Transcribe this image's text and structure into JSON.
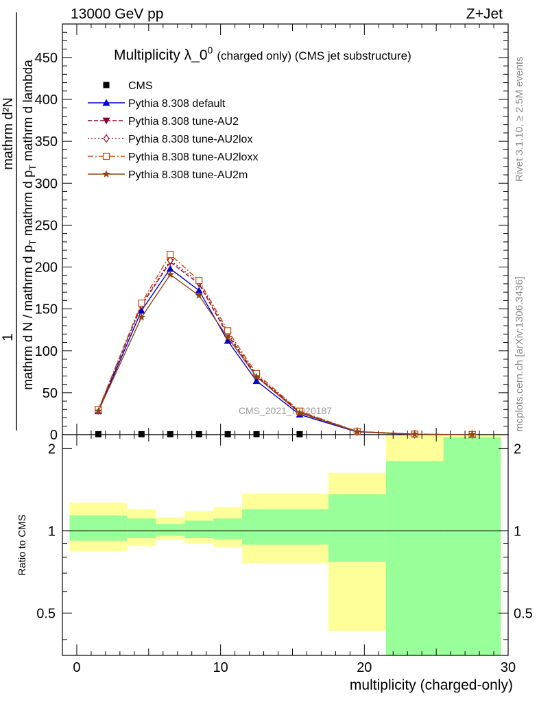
{
  "header": {
    "left": "13000 GeV pp",
    "right": "Z+Jet"
  },
  "side_labels": {
    "rivet": "Rivet 3.1.10, ≥ 2.5M events",
    "mcplots": "mcplots.cern.ch [arXiv:1306.3436]"
  },
  "watermark": "CMS_2021_I1920187",
  "chart_data": [
    {
      "type": "line",
      "panel": "main",
      "title_main": "Multiplicity λ_0",
      "title_sup": "0",
      "title_note": "(charged only) (CMS jet substructure)",
      "ylabel": {
        "num": "mathrm d²N",
        "den": "mathrm d N / mathrm d p",
        "sub": "T",
        "den2": " mathrm d p",
        "sub2": "T",
        "den3": " mathrm d lambda",
        "one": "1"
      },
      "xlim": [
        -1,
        30
      ],
      "ylim": [
        0,
        490
      ],
      "yticks": [
        0,
        50,
        100,
        150,
        200,
        250,
        300,
        350,
        400,
        450
      ],
      "legend_position": "top-left",
      "bins": [
        [
          -1,
          4
        ],
        [
          4,
          5
        ],
        [
          5,
          8
        ],
        [
          8,
          9
        ],
        [
          9,
          11
        ],
        [
          11,
          14
        ],
        [
          14,
          17
        ],
        [
          17,
          22
        ],
        [
          22,
          26
        ],
        [
          26,
          30
        ]
      ],
      "series": [
        {
          "name": "CMS",
          "color": "#000000",
          "marker": "square",
          "x": [
            1.5,
            4.5,
            6.5,
            8.5,
            10.5,
            12.5,
            15.5
          ],
          "y": [
            0.5,
            0.5,
            0.5,
            0.5,
            0.5,
            0.5,
            0.5
          ]
        },
        {
          "name": "Pythia 8.308 default",
          "color": "#0000cc",
          "dash": "",
          "marker": "triangle-up",
          "x": [
            1.5,
            4.5,
            6.5,
            8.5,
            10.5,
            12.5,
            15.5,
            19.5,
            23.5,
            27.5
          ],
          "y": [
            28,
            148,
            198,
            172,
            112,
            64,
            24,
            3.2,
            0.4,
            0.1
          ]
        },
        {
          "name": "Pythia 8.308 tune-AU2",
          "color": "#8b0033",
          "dash": "6,3",
          "marker": "triangle-down",
          "x": [
            1.5,
            4.5,
            6.5,
            8.5,
            10.5,
            12.5,
            15.5,
            19.5,
            23.5,
            27.5
          ],
          "y": [
            29,
            154,
            206,
            180,
            119,
            70,
            27,
            3.6,
            0.5,
            0.1
          ]
        },
        {
          "name": "Pythia 8.308 tune-AU2lox",
          "color": "#a01020",
          "dash": "2,3",
          "marker": "diamond-open",
          "x": [
            1.5,
            4.5,
            6.5,
            8.5,
            10.5,
            12.5,
            15.5,
            19.5,
            23.5,
            27.5
          ],
          "y": [
            29,
            155,
            208,
            182,
            121,
            71,
            27,
            3.7,
            0.5,
            0.1
          ]
        },
        {
          "name": "Pythia 8.308 tune-AU2loxx",
          "color": "#cc4400",
          "dash": "8,3,2,3",
          "marker": "square-open",
          "x": [
            1.5,
            4.5,
            6.5,
            8.5,
            10.5,
            12.5,
            15.5,
            19.5,
            23.5,
            27.5
          ],
          "y": [
            30,
            157,
            215,
            184,
            124,
            73,
            28,
            3.9,
            0.6,
            0.1
          ]
        },
        {
          "name": "Pythia 8.308 tune-AU2m",
          "color": "#8b4513",
          "dash": "",
          "marker": "star",
          "x": [
            1.5,
            4.5,
            6.5,
            8.5,
            10.5,
            12.5,
            15.5,
            19.5,
            23.5,
            27.5
          ],
          "y": [
            28,
            140,
            191,
            166,
            116,
            69,
            26,
            3.5,
            0.5,
            0.1
          ]
        }
      ]
    },
    {
      "type": "area",
      "panel": "ratio",
      "ylabel": "Ratio to CMS",
      "xlabel": "multiplicity (charged-only)",
      "xlim": [
        -1,
        30
      ],
      "ylim": [
        0.35,
        2.25
      ],
      "yticks": [
        0.5,
        1,
        2
      ],
      "ytick_labels": [
        "0.5",
        "1",
        "2"
      ],
      "xticks": [
        0,
        10,
        20,
        30
      ],
      "xtick_labels": [
        "0",
        "10",
        "20",
        "30"
      ],
      "reference_line": 1,
      "bands": [
        {
          "x0": -0.5,
          "x1": 3.5,
          "stat_lo": 0.92,
          "stat_hi": 1.14,
          "tot_lo": 0.84,
          "tot_hi": 1.27
        },
        {
          "x0": 3.5,
          "x1": 5.5,
          "stat_lo": 0.94,
          "stat_hi": 1.11,
          "tot_lo": 0.88,
          "tot_hi": 1.2
        },
        {
          "x0": 5.5,
          "x1": 7.5,
          "stat_lo": 0.96,
          "stat_hi": 1.06,
          "tot_lo": 0.93,
          "tot_hi": 1.12
        },
        {
          "x0": 7.5,
          "x1": 9.5,
          "stat_lo": 0.94,
          "stat_hi": 1.09,
          "tot_lo": 0.9,
          "tot_hi": 1.18
        },
        {
          "x0": 9.5,
          "x1": 11.5,
          "stat_lo": 0.93,
          "stat_hi": 1.11,
          "tot_lo": 0.87,
          "tot_hi": 1.22
        },
        {
          "x0": 11.5,
          "x1": 17.5,
          "stat_lo": 0.89,
          "stat_hi": 1.2,
          "tot_lo": 0.76,
          "tot_hi": 1.37
        },
        {
          "x0": 17.5,
          "x1": 21.5,
          "stat_lo": 0.77,
          "stat_hi": 1.36,
          "tot_lo": 0.43,
          "tot_hi": 1.63
        },
        {
          "x0": 21.5,
          "x1": 25.5,
          "stat_lo": 0.3,
          "stat_hi": 1.8,
          "tot_lo": 0.3,
          "tot_hi": 2.4
        },
        {
          "x0": 25.5,
          "x1": 29.5,
          "stat_lo": 0.3,
          "stat_hi": 2.2,
          "tot_lo": 0.3,
          "tot_hi": 2.4
        }
      ],
      "colors": {
        "stat": "#99ff99",
        "total": "#ffff99"
      }
    }
  ]
}
